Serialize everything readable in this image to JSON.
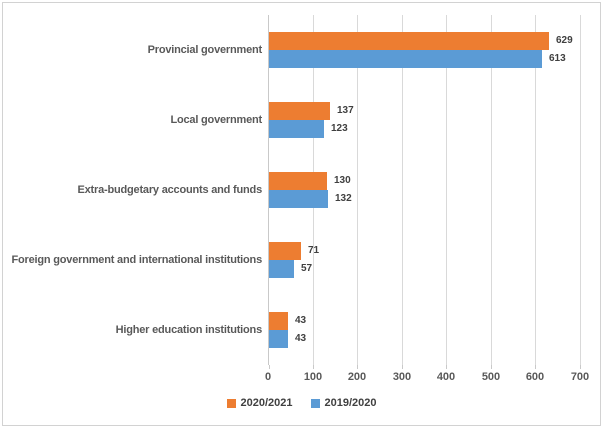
{
  "chart_data": {
    "type": "bar",
    "orientation": "horizontal",
    "title": "",
    "categories": [
      "Provincial government",
      "Local government",
      "Extra-budgetary accounts and funds",
      "Foreign government and international institutions",
      "Higher education institutions"
    ],
    "series": [
      {
        "name": "2020/2021",
        "color": "#ED7D31",
        "values": [
          629,
          137,
          130,
          71,
          43
        ]
      },
      {
        "name": "2019/2020",
        "color": "#5B9BD5",
        "values": [
          613,
          123,
          132,
          57,
          43
        ]
      }
    ],
    "xlim": [
      0,
      700
    ],
    "xticks": [
      0,
      100,
      200,
      300,
      400,
      500,
      600,
      700
    ],
    "grid": "vertical-gridlines-on",
    "legend_position": "bottom-center",
    "data_labels": "outside-end"
  },
  "colors": {
    "series_2020_2021": "#ED7D31",
    "series_2019_2020": "#5B9BD5",
    "gridline": "#D9D9D9",
    "axis_text": "#595959",
    "data_label_text": "#404040",
    "frame_border": "#D2D2D2"
  }
}
